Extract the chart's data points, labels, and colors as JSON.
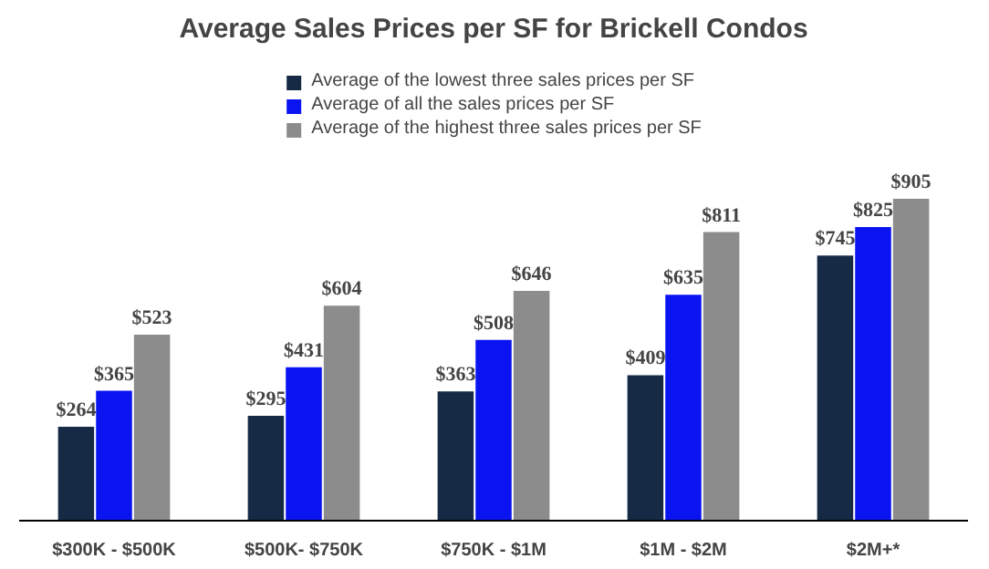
{
  "chart_data": {
    "type": "bar",
    "title": "Average Sales Prices per SF for Brickell Condos",
    "categories": [
      "$300K - $500K",
      "$500K- $750K",
      "$750K - $1M",
      "$1M - $2M",
      "$2M+*"
    ],
    "series": [
      {
        "name": "Average of the lowest three sales prices per SF",
        "color": "#172a45",
        "values": [
          264,
          295,
          363,
          409,
          745
        ],
        "value_labels": [
          "$264",
          "$295",
          "$363",
          "$409",
          "$745"
        ]
      },
      {
        "name": "Average of all the sales prices per SF",
        "color": "#0a14f0",
        "values": [
          365,
          431,
          508,
          635,
          825
        ],
        "value_labels": [
          "$365",
          "$431",
          "$508",
          "$635",
          "$825"
        ]
      },
      {
        "name": "Average of the highest three sales prices per SF",
        "color": "#8c8c8c",
        "values": [
          523,
          604,
          646,
          811,
          905
        ],
        "value_labels": [
          "$523",
          "$604",
          "$646",
          "$811",
          "$905"
        ]
      }
    ],
    "legend": "top",
    "grid": false
  }
}
